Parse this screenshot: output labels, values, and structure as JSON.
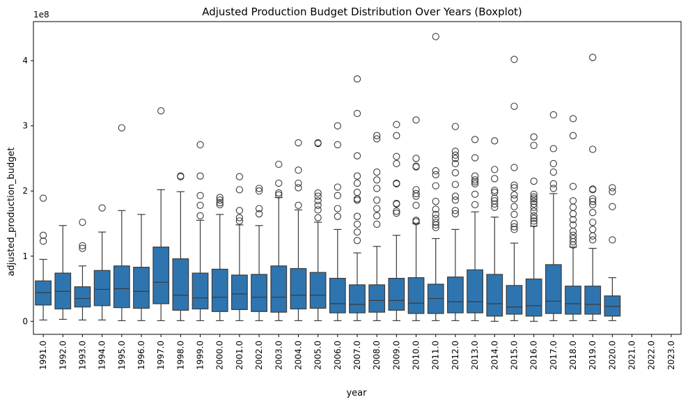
{
  "chart_data": {
    "type": "boxplot",
    "title": "Adjusted Production Budget Distribution Over Years (Boxplot)",
    "xlabel": "year",
    "ylabel": "adjusted_production_budget",
    "y_offset_text": "1e8",
    "y_unit_scale": 100000000,
    "ylim": [
      -0.2,
      4.6
    ],
    "y_ticks": [
      0,
      1,
      2,
      3,
      4
    ],
    "y_tick_labels": [
      "0",
      "1",
      "2",
      "3",
      "4"
    ],
    "grid": false,
    "legend": "none",
    "box_color": "#2e75b0",
    "categories": [
      "1991.0",
      "1992.0",
      "1993.0",
      "1994.0",
      "1995.0",
      "1996.0",
      "1997.0",
      "1998.0",
      "1999.0",
      "2000.0",
      "2001.0",
      "2002.0",
      "2003.0",
      "2004.0",
      "2005.0",
      "2006.0",
      "2007.0",
      "2008.0",
      "2009.0",
      "2010.0",
      "2011.0",
      "2012.0",
      "2013.0",
      "2014.0",
      "2015.0",
      "2016.0",
      "2017.0",
      "2018.0",
      "2019.0",
      "2020.0",
      "2021.0",
      "2022.0",
      "2023.0"
    ],
    "boxes": [
      {
        "whislo": 0.02,
        "q1": 0.25,
        "med": 0.44,
        "q3": 0.62,
        "whishi": 0.95,
        "fliers": [
          1.23,
          1.32,
          1.89
        ]
      },
      {
        "whislo": 0.03,
        "q1": 0.19,
        "med": 0.46,
        "q3": 0.74,
        "whishi": 1.47,
        "fliers": []
      },
      {
        "whislo": 0.02,
        "q1": 0.22,
        "med": 0.35,
        "q3": 0.53,
        "whishi": 0.85,
        "fliers": [
          1.12,
          1.16,
          1.52
        ]
      },
      {
        "whislo": 0.02,
        "q1": 0.24,
        "med": 0.49,
        "q3": 0.78,
        "whishi": 1.37,
        "fliers": [
          1.74
        ]
      },
      {
        "whislo": 0.01,
        "q1": 0.21,
        "med": 0.5,
        "q3": 0.85,
        "whishi": 1.7,
        "fliers": [
          2.97
        ]
      },
      {
        "whislo": 0.01,
        "q1": 0.2,
        "med": 0.46,
        "q3": 0.83,
        "whishi": 1.64,
        "fliers": []
      },
      {
        "whislo": 0.01,
        "q1": 0.27,
        "med": 0.6,
        "q3": 1.14,
        "whishi": 2.02,
        "fliers": [
          3.23
        ]
      },
      {
        "whislo": 0.01,
        "q1": 0.17,
        "med": 0.4,
        "q3": 0.96,
        "whishi": 1.99,
        "fliers": [
          2.22,
          2.23
        ]
      },
      {
        "whislo": 0.01,
        "q1": 0.19,
        "med": 0.36,
        "q3": 0.74,
        "whishi": 1.55,
        "fliers": [
          1.62,
          1.78,
          1.93,
          2.23,
          2.71
        ]
      },
      {
        "whislo": 0.01,
        "q1": 0.15,
        "med": 0.37,
        "q3": 0.8,
        "whishi": 1.64,
        "fliers": [
          1.79,
          1.82,
          1.86,
          1.9
        ]
      },
      {
        "whislo": 0.01,
        "q1": 0.18,
        "med": 0.42,
        "q3": 0.71,
        "whishi": 1.48,
        "fliers": [
          1.54,
          1.59,
          1.7,
          2.02,
          2.22
        ]
      },
      {
        "whislo": 0.01,
        "q1": 0.15,
        "med": 0.37,
        "q3": 0.72,
        "whishi": 1.47,
        "fliers": [
          1.65,
          1.73,
          2.0,
          2.04
        ]
      },
      {
        "whislo": 0.01,
        "q1": 0.14,
        "med": 0.37,
        "q3": 0.85,
        "whishi": 1.9,
        "fliers": [
          1.94,
          1.97,
          2.12,
          2.41
        ]
      },
      {
        "whislo": 0.01,
        "q1": 0.19,
        "med": 0.4,
        "q3": 0.81,
        "whishi": 1.71,
        "fliers": [
          1.78,
          2.05,
          2.12,
          2.32,
          2.74
        ]
      },
      {
        "whislo": 0.01,
        "q1": 0.2,
        "med": 0.4,
        "q3": 0.75,
        "whishi": 1.52,
        "fliers": [
          1.59,
          1.71,
          1.78,
          1.85,
          1.92,
          1.97,
          2.73,
          2.74
        ]
      },
      {
        "whislo": 0.01,
        "q1": 0.13,
        "med": 0.27,
        "q3": 0.66,
        "whishi": 1.41,
        "fliers": [
          1.61,
          1.73,
          1.93,
          2.06,
          2.71,
          3.0
        ]
      },
      {
        "whislo": 0.01,
        "q1": 0.13,
        "med": 0.26,
        "q3": 0.56,
        "whishi": 1.05,
        "fliers": [
          1.24,
          1.37,
          1.49,
          1.61,
          1.86,
          1.88,
          1.98,
          2.12,
          2.23,
          2.54,
          3.19,
          3.72
        ]
      },
      {
        "whislo": 0.01,
        "q1": 0.14,
        "med": 0.32,
        "q3": 0.56,
        "whishi": 1.15,
        "fliers": [
          1.49,
          1.62,
          1.73,
          1.86,
          2.04,
          2.17,
          2.29,
          2.8,
          2.85
        ]
      },
      {
        "whislo": 0.01,
        "q1": 0.17,
        "med": 0.32,
        "q3": 0.66,
        "whishi": 1.32,
        "fliers": [
          1.66,
          1.69,
          1.8,
          1.81,
          2.11,
          2.12,
          2.42,
          2.53,
          2.85,
          3.02
        ]
      },
      {
        "whislo": 0.01,
        "q1": 0.12,
        "med": 0.28,
        "q3": 0.67,
        "whishi": 1.5,
        "fliers": [
          1.53,
          1.55,
          1.78,
          1.92,
          1.96,
          2.02,
          2.37,
          2.38,
          2.5,
          3.09
        ]
      },
      {
        "whislo": 0.01,
        "q1": 0.12,
        "med": 0.35,
        "q3": 0.57,
        "whishi": 1.27,
        "fliers": [
          1.44,
          1.48,
          1.52,
          1.58,
          1.64,
          1.72,
          1.84,
          2.08,
          2.25,
          2.31,
          4.37
        ]
      },
      {
        "whislo": 0.01,
        "q1": 0.13,
        "med": 0.3,
        "q3": 0.68,
        "whishi": 1.41,
        "fliers": [
          1.65,
          1.7,
          1.86,
          1.92,
          2.1,
          2.28,
          2.42,
          2.5,
          2.55,
          2.61,
          2.99
        ]
      },
      {
        "whislo": 0.01,
        "q1": 0.13,
        "med": 0.3,
        "q3": 0.79,
        "whishi": 1.68,
        "fliers": [
          1.79,
          1.95,
          2.11,
          2.14,
          2.17,
          2.23,
          2.51,
          2.79
        ]
      },
      {
        "whislo": 0.0,
        "q1": 0.08,
        "med": 0.27,
        "q3": 0.72,
        "whishi": 1.6,
        "fliers": [
          1.75,
          1.8,
          1.85,
          1.89,
          1.98,
          2.01,
          2.19,
          2.33,
          2.77
        ]
      },
      {
        "whislo": 0.01,
        "q1": 0.11,
        "med": 0.22,
        "q3": 0.55,
        "whishi": 1.2,
        "fliers": [
          1.41,
          1.45,
          1.5,
          1.64,
          1.76,
          1.88,
          1.94,
          2.05,
          2.09,
          2.36,
          3.3,
          4.02
        ]
      },
      {
        "whislo": 0.0,
        "q1": 0.08,
        "med": 0.24,
        "q3": 0.65,
        "whishi": 1.46,
        "fliers": [
          1.5,
          1.54,
          1.58,
          1.62,
          1.69,
          1.75,
          1.8,
          1.84,
          1.88,
          1.91,
          1.95,
          2.15,
          2.7,
          2.83
        ]
      },
      {
        "whislo": 0.01,
        "q1": 0.12,
        "med": 0.31,
        "q3": 0.87,
        "whishi": 1.96,
        "fliers": [
          2.04,
          2.11,
          2.29,
          2.42,
          2.65,
          3.17
        ]
      },
      {
        "whislo": 0.01,
        "q1": 0.11,
        "med": 0.27,
        "q3": 0.54,
        "whishi": 1.14,
        "fliers": [
          1.17,
          1.22,
          1.27,
          1.32,
          1.38,
          1.48,
          1.56,
          1.65,
          1.75,
          1.85,
          2.07,
          2.85,
          3.11
        ]
      },
      {
        "whislo": 0.01,
        "q1": 0.11,
        "med": 0.26,
        "q3": 0.54,
        "whishi": 1.12,
        "fliers": [
          1.25,
          1.31,
          1.41,
          1.52,
          1.67,
          1.79,
          1.84,
          1.88,
          2.02,
          2.03,
          2.64,
          4.05
        ]
      },
      {
        "whislo": 0.01,
        "q1": 0.08,
        "med": 0.23,
        "q3": 0.39,
        "whishi": 0.67,
        "fliers": [
          1.25,
          1.76,
          1.99,
          2.05
        ]
      },
      null,
      null,
      null
    ]
  }
}
